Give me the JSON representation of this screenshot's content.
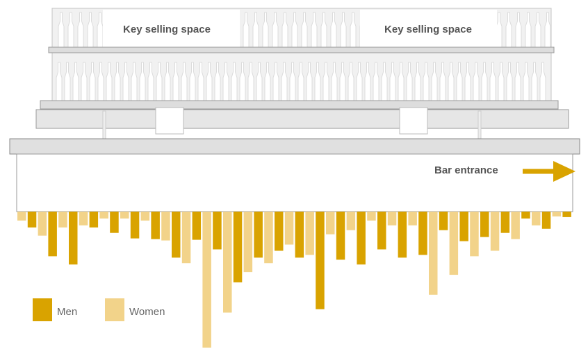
{
  "chart_data": {
    "type": "bar",
    "annotations": [
      "Key selling space",
      "Key selling space",
      "Bar entrance"
    ],
    "categories": [
      null,
      null,
      null,
      null,
      null,
      null,
      null,
      null,
      null,
      null,
      null,
      null,
      null,
      null,
      null,
      null,
      null,
      null,
      null,
      null,
      null,
      null,
      null,
      null,
      null,
      null,
      null
    ],
    "series": [
      {
        "name": "Men",
        "color": "#d9a300",
        "values": [
          23,
          65,
          77,
          23,
          31,
          39,
          40,
          67,
          41,
          55,
          103,
          67,
          57,
          67,
          142,
          70,
          77,
          55,
          67,
          63,
          27,
          43,
          37,
          31,
          10,
          25,
          8
        ]
      },
      {
        "name": "Women",
        "color": "#f2d38a",
        "values": [
          13,
          35,
          23,
          20,
          10,
          10,
          13,
          42,
          75,
          198,
          147,
          88,
          75,
          48,
          63,
          33,
          27,
          13,
          20,
          20,
          121,
          92,
          65,
          57,
          40,
          20,
          7
        ]
      }
    ],
    "ylim": [
      0,
      200
    ]
  }
}
